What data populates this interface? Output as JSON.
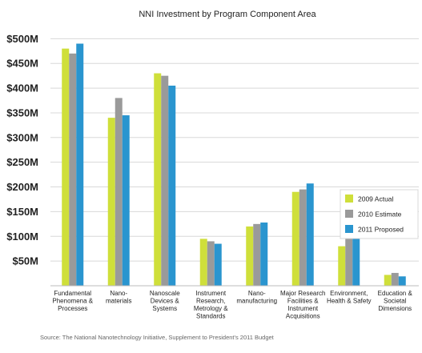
{
  "chart_data": {
    "type": "bar",
    "title": "NNI Investment by Program Component Area",
    "categories": [
      [
        "Fundamental",
        "Phenomena &",
        "Processes"
      ],
      [
        "Nano-",
        "materials"
      ],
      [
        "Nanoscale",
        "Devices &",
        "Systems"
      ],
      [
        "Instrument",
        "Research,",
        "Metrology &",
        "Standards"
      ],
      [
        "Nano-",
        "manufacturing"
      ],
      [
        "Major Research",
        "Facilities &",
        "Instrument",
        "Acquisitions"
      ],
      [
        "Environment,",
        "Health & Safety"
      ],
      [
        "Education &",
        "Societal",
        "Dimensions"
      ]
    ],
    "series": [
      {
        "name": "2009 Actual",
        "color": "#cfdf3a",
        "values": [
          480,
          340,
          430,
          95,
          120,
          190,
          80,
          22
        ]
      },
      {
        "name": "2010 Estimate",
        "color": "#9a9a9a",
        "values": [
          470,
          380,
          425,
          90,
          125,
          195,
          100,
          26
        ]
      },
      {
        "name": "2011 Proposed",
        "color": "#2a95cf",
        "values": [
          490,
          345,
          405,
          85,
          128,
          207,
          104,
          19
        ]
      }
    ],
    "y_tick_values": [
      50,
      100,
      150,
      200,
      250,
      300,
      350,
      400,
      450,
      500
    ],
    "y_tick_labels": [
      "$50M",
      "$100M",
      "$150M",
      "$200M",
      "$250M",
      "$300M",
      "$350M",
      "$400M",
      "$450M",
      "$500M"
    ],
    "ylim": [
      0,
      520
    ],
    "grid": "horizontal",
    "legend_position": "right",
    "source": "Source: The National Nanotechnology Initiative, Supplement to President's 2011 Budget"
  }
}
